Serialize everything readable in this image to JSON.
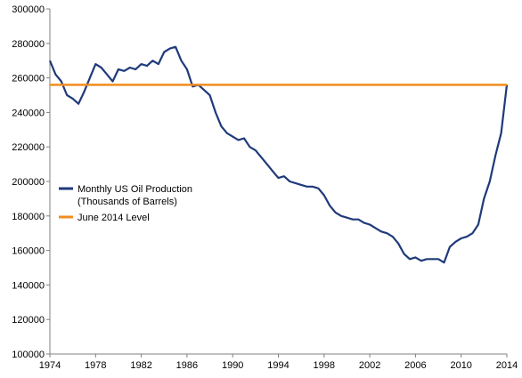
{
  "chart_data": {
    "type": "line",
    "title": "",
    "xlabel": "",
    "ylabel": "",
    "xlim": [
      1974,
      2014
    ],
    "ylim": [
      100000,
      300000
    ],
    "x_ticks": [
      "1974",
      "1978",
      "1982",
      "1986",
      "1990",
      "1994",
      "1998",
      "2002",
      "2006",
      "2010",
      "2014"
    ],
    "y_ticks": [
      "100000",
      "120000",
      "140000",
      "160000",
      "180000",
      "200000",
      "220000",
      "240000",
      "260000",
      "280000",
      "300000"
    ],
    "grid": false,
    "legend_position": "middle-left",
    "series": [
      {
        "name": "Monthly US Oil Production",
        "name_line2": "(Thousands of Barrels)",
        "color": "#1f3a7a",
        "x": [
          1974.0,
          1974.5,
          1975.0,
          1975.5,
          1976.0,
          1976.5,
          1977.0,
          1977.5,
          1978.0,
          1978.5,
          1979.0,
          1979.5,
          1980.0,
          1980.5,
          1981.0,
          1981.5,
          1982.0,
          1982.5,
          1983.0,
          1983.5,
          1984.0,
          1984.5,
          1985.0,
          1985.5,
          1986.0,
          1986.5,
          1987.0,
          1987.5,
          1988.0,
          1988.5,
          1989.0,
          1989.5,
          1990.0,
          1990.5,
          1991.0,
          1991.5,
          1992.0,
          1992.5,
          1993.0,
          1993.5,
          1994.0,
          1994.5,
          1995.0,
          1995.5,
          1996.0,
          1996.5,
          1997.0,
          1997.5,
          1998.0,
          1998.5,
          1999.0,
          1999.5,
          2000.0,
          2000.5,
          2001.0,
          2001.5,
          2002.0,
          2002.5,
          2003.0,
          2003.5,
          2004.0,
          2004.5,
          2005.0,
          2005.5,
          2006.0,
          2006.5,
          2007.0,
          2007.5,
          2008.0,
          2008.5,
          2009.0,
          2009.5,
          2010.0,
          2010.5,
          2011.0,
          2011.5,
          2012.0,
          2012.5,
          2013.0,
          2013.5,
          2014.0
        ],
        "values": [
          270000,
          262000,
          258000,
          250000,
          248000,
          245000,
          252000,
          260000,
          268000,
          266000,
          262000,
          258000,
          265000,
          264000,
          266000,
          265000,
          268000,
          267000,
          270000,
          268000,
          275000,
          277000,
          278000,
          270000,
          265000,
          255000,
          256000,
          253000,
          250000,
          240000,
          232000,
          228000,
          226000,
          224000,
          225000,
          220000,
          218000,
          214000,
          210000,
          206000,
          202000,
          203000,
          200000,
          199000,
          198000,
          197000,
          197000,
          196000,
          192000,
          186000,
          182000,
          180000,
          179000,
          178000,
          178000,
          176000,
          175000,
          173000,
          171000,
          170000,
          168000,
          164000,
          158000,
          155000,
          156000,
          154000,
          155000,
          155000,
          155000,
          153000,
          162000,
          165000,
          167000,
          168000,
          170000,
          175000,
          190000,
          200000,
          215000,
          228000,
          256000
        ]
      },
      {
        "name": "June 2014 Level",
        "color": "#f28c1e",
        "x": [
          1974,
          2014
        ],
        "values": [
          256000,
          256000
        ]
      }
    ]
  }
}
